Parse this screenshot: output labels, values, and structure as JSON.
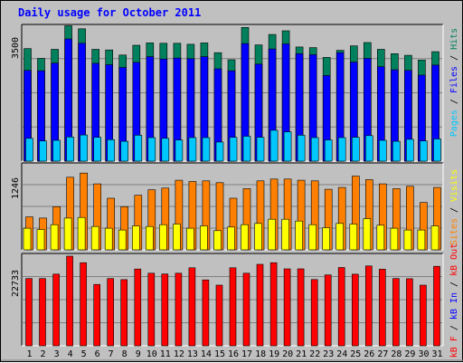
{
  "title": "Daily usage for October 2011",
  "colors": {
    "hits": "#00805c",
    "files": "#0000ff",
    "pages": "#00c8ff",
    "visits": "#ffff00",
    "sites": "#ff8000",
    "kbout": "#ff0000",
    "kbin": "#0000ff",
    "kbf": "#ff0000",
    "plot_bg": "#c0c0c0",
    "weekend_day": "#00805c",
    "weekday": "#000000"
  },
  "days": [
    "1",
    "2",
    "3",
    "4",
    "5",
    "6",
    "7",
    "8",
    "9",
    "10",
    "11",
    "12",
    "13",
    "14",
    "15",
    "16",
    "17",
    "18",
    "19",
    "20",
    "21",
    "22",
    "23",
    "24",
    "25",
    "26",
    "27",
    "28",
    "29",
    "30",
    "31"
  ],
  "weekend_days": [
    "1",
    "2",
    "8",
    "9",
    "15",
    "16",
    "22",
    "23",
    "29",
    "30"
  ],
  "panels": {
    "top": {
      "ymax_label": "3500",
      "legend": [
        {
          "text": "Pages",
          "color": "#00c8ff"
        },
        {
          "text": " / ",
          "color": "#000000"
        },
        {
          "text": "Files",
          "color": "#0000ff"
        },
        {
          "text": " / ",
          "color": "#000000"
        },
        {
          "text": "Hits",
          "color": "#00805c"
        }
      ]
    },
    "middle": {
      "ymax_label": "1246",
      "legend": [
        {
          "text": "Sites",
          "color": "#ff8000"
        },
        {
          "text": " / ",
          "color": "#000000"
        },
        {
          "text": "Visits",
          "color": "#ffff00"
        }
      ]
    },
    "bottom": {
      "ymax_label": "22733",
      "legend": [
        {
          "text": "kB F",
          "color": "#ff0000"
        },
        {
          "text": " / ",
          "color": "#000000"
        },
        {
          "text": "kB In",
          "color": "#0000ff"
        },
        {
          "text": " / ",
          "color": "#000000"
        },
        {
          "text": "kB Out",
          "color": "#ff0000"
        }
      ]
    }
  },
  "chart_data": [
    {
      "type": "bar",
      "panel": "top",
      "categories": [
        "1",
        "2",
        "3",
        "4",
        "5",
        "6",
        "7",
        "8",
        "9",
        "10",
        "11",
        "12",
        "13",
        "14",
        "15",
        "16",
        "17",
        "18",
        "19",
        "20",
        "21",
        "22",
        "23",
        "24",
        "25",
        "26",
        "27",
        "28",
        "29",
        "30",
        "31"
      ],
      "ylim": [
        0,
        4070
      ],
      "series": [
        {
          "name": "Hits",
          "values": [
            3350,
            3060,
            3330,
            4030,
            3940,
            3330,
            3310,
            3160,
            3450,
            3520,
            3510,
            3510,
            3480,
            3520,
            3230,
            3020,
            3980,
            3460,
            3770,
            3880,
            3400,
            3380,
            3090,
            3300,
            3430,
            3530,
            3330,
            3200,
            3150,
            3010,
            3260
          ]
        },
        {
          "name": "Files",
          "values": [
            2700,
            2690,
            2920,
            3640,
            3510,
            2910,
            2870,
            2790,
            2940,
            3110,
            3040,
            3070,
            3050,
            3110,
            2750,
            2690,
            3500,
            2890,
            3340,
            3490,
            3200,
            3170,
            2550,
            3230,
            2950,
            3060,
            2810,
            2720,
            2700,
            2560,
            2860
          ]
        },
        {
          "name": "Pages",
          "values": [
            680,
            600,
            620,
            720,
            780,
            710,
            640,
            590,
            770,
            700,
            680,
            630,
            700,
            700,
            570,
            710,
            740,
            710,
            920,
            870,
            770,
            700,
            630,
            700,
            710,
            760,
            620,
            590,
            650,
            600,
            660
          ]
        }
      ]
    },
    {
      "type": "bar",
      "panel": "middle",
      "categories": [
        "1",
        "2",
        "3",
        "4",
        "5",
        "6",
        "7",
        "8",
        "9",
        "10",
        "11",
        "12",
        "13",
        "14",
        "15",
        "16",
        "17",
        "18",
        "19",
        "20",
        "21",
        "22",
        "23",
        "24",
        "25",
        "26",
        "27",
        "28",
        "29",
        "30",
        "31"
      ],
      "ylim": [
        0,
        1449
      ],
      "series": [
        {
          "name": "Sites",
          "values": [
            550,
            530,
            720,
            1210,
            1280,
            1100,
            860,
            720,
            910,
            1000,
            1030,
            1160,
            1140,
            1150,
            1120,
            860,
            1020,
            1150,
            1180,
            1180,
            1160,
            1150,
            1010,
            1040,
            1230,
            1170,
            1100,
            1020,
            1060,
            790,
            1040
          ]
        },
        {
          "name": "Visits",
          "values": [
            360,
            340,
            420,
            530,
            540,
            390,
            360,
            330,
            400,
            390,
            420,
            430,
            360,
            400,
            320,
            380,
            420,
            440,
            510,
            510,
            480,
            420,
            370,
            440,
            430,
            520,
            410,
            360,
            330,
            330,
            400
          ]
        }
      ]
    },
    {
      "type": "bar",
      "panel": "bottom",
      "categories": [
        "1",
        "2",
        "3",
        "4",
        "5",
        "6",
        "7",
        "8",
        "9",
        "10",
        "11",
        "12",
        "13",
        "14",
        "15",
        "16",
        "17",
        "18",
        "19",
        "20",
        "21",
        "22",
        "23",
        "24",
        "25",
        "26",
        "27",
        "28",
        "29",
        "30",
        "31"
      ],
      "ylim": [
        0,
        25260
      ],
      "series": [
        {
          "name": "kB Out",
          "values": [
            18400,
            18400,
            19620,
            24520,
            22730,
            16800,
            18400,
            18100,
            21000,
            19860,
            19630,
            19860,
            21340,
            18020,
            16590,
            21340,
            19860,
            22280,
            22730,
            21060,
            21040,
            18120,
            19400,
            21430,
            19600,
            21840,
            20960,
            18400,
            18360,
            16590,
            21740
          ]
        }
      ]
    }
  ]
}
